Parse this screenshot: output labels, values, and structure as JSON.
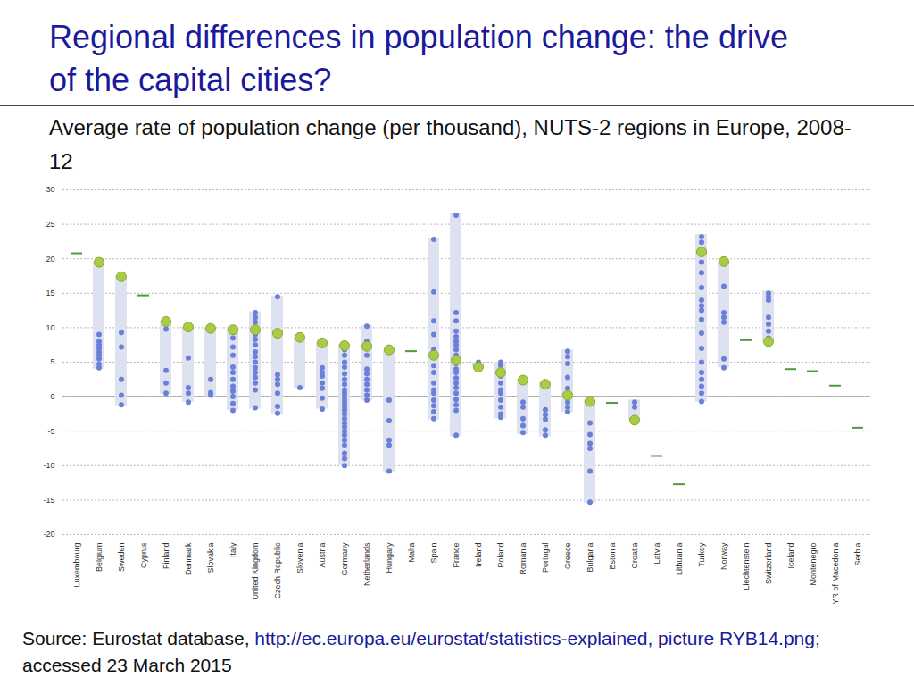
{
  "chart_data": {
    "type": "range_dot",
    "title": "Regional differences in population change: the drive of the capital cities?",
    "subtitle": "Average rate of population change (per thousand), NUTS-2 regions in Europe, 2008-12",
    "source": {
      "prefix": "Source: Eurostat database, ",
      "link": "http://ec.europa.eu/eurostat/statistics-explained, picture RYB14.png;",
      "suffix": " accessed 23 March 2015"
    },
    "categories": [
      "Luxembourg",
      "Belgium",
      "Sweden",
      "Cyprus",
      "Finland",
      "Denmark",
      "Slovakia",
      "Italy",
      "United Kingdom",
      "Czech Republic",
      "Slovenia",
      "Austria",
      "Germany",
      "Netherlands",
      "Hungary",
      "Malta",
      "Spain",
      "France",
      "Ireland",
      "Poland",
      "Romania",
      "Portugal",
      "Greece",
      "Bulgaria",
      "Estonia",
      "Croatia",
      "Latvia",
      "Lithuania",
      "Turkey",
      "Norway",
      "Liechtenstein",
      "Switzerland",
      "Iceland",
      "Montenegro",
      "YR of Macedonia",
      "Serbia"
    ],
    "series": [
      {
        "type": "range",
        "color": "#dde1f0",
        "values": [
          null,
          [
            4,
            19.5
          ],
          [
            -1.3,
            17.5
          ],
          null,
          [
            0.3,
            10.9
          ],
          [
            -0.8,
            10.1
          ],
          [
            0,
            9.9
          ],
          [
            -2,
            9.8
          ],
          [
            -1.8,
            12.3
          ],
          [
            -2.5,
            14.6
          ],
          [
            1.2,
            8.6
          ],
          [
            -1.8,
            7.8
          ],
          [
            -10,
            7.6
          ],
          [
            -0.6,
            10.3
          ],
          [
            -10.9,
            6.8
          ],
          null,
          [
            -3.4,
            22.9
          ],
          [
            -5.8,
            26.5
          ],
          [
            4.3,
            5
          ],
          [
            -3.2,
            5
          ],
          [
            -5.5,
            2.5
          ],
          [
            -5.8,
            2
          ],
          [
            -2.3,
            6.8
          ],
          [
            -15.5,
            -0.5
          ],
          null,
          [
            -3.4,
            -0.5
          ],
          null,
          null,
          [
            -0.8,
            23.5
          ],
          [
            4.2,
            19.6
          ],
          null,
          [
            8,
            15.3
          ],
          null,
          null,
          null,
          null
        ]
      },
      {
        "type": "dot",
        "marker": "point",
        "color": "#6a80d8",
        "values": [
          [],
          [
            4.2,
            4.7,
            5.5,
            6,
            6.5,
            7,
            7.5,
            8,
            9
          ],
          [
            -1.2,
            0.2,
            2.5,
            7.2,
            9.3
          ],
          [],
          [
            0.5,
            2,
            3.8,
            9.8
          ],
          [
            -0.8,
            0.5,
            1.3,
            5.6
          ],
          [
            0.2,
            0.6,
            2.5
          ],
          [
            -2,
            -1,
            0,
            0.8,
            1.5,
            2.5,
            3.5,
            4.3,
            6,
            7.2,
            8.5,
            9.3
          ],
          [
            -1.6,
            1,
            2,
            2.8,
            3.5,
            4.2,
            5,
            5.8,
            6.5,
            7.5,
            8.3,
            9,
            10,
            10.8,
            11.5,
            12.2
          ],
          [
            -2.4,
            -1.4,
            0.5,
            1.8,
            2.5,
            3.2,
            14.5
          ],
          [
            1.3
          ],
          [
            -1.8,
            -0.2,
            1.2,
            2,
            3,
            3.5,
            4.2
          ],
          [
            -10,
            -9,
            -8.2,
            -7,
            -6.3,
            -5.6,
            -5,
            -4.4,
            -3.8,
            -3.2,
            -2.5,
            -2,
            -1.5,
            -1,
            -0.5,
            0,
            0.5,
            1,
            1.8,
            2.5,
            3.3,
            4.3,
            5,
            6,
            6.8,
            7.5
          ],
          [
            -0.5,
            0.2,
            1,
            1.8,
            2.5,
            3.3,
            4,
            6,
            8,
            10.2
          ],
          [
            -10.8,
            -7,
            -6.3,
            -3.5,
            -0.5
          ],
          [],
          [
            -3.2,
            -2.2,
            -1.3,
            -0.5,
            0.5,
            1,
            2,
            3.5,
            4.5,
            6.8,
            9,
            11,
            15.2,
            22.8
          ],
          [
            -5.6,
            -2,
            -1.2,
            -0.4,
            0.5,
            1.3,
            2,
            2.7,
            3.5,
            4,
            4.8,
            6,
            6.8,
            7.5,
            8,
            8.7,
            9.5,
            11,
            12.2,
            26.3
          ],
          [
            5
          ],
          [
            -3,
            -2.5,
            -1.5,
            -0.5,
            0.5,
            1,
            2,
            3,
            4.5,
            5
          ],
          [
            -5.2,
            -4.2,
            -3.2,
            -1.5,
            -0.8
          ],
          [
            -5.6,
            -4.8,
            -3.3,
            -2.6,
            -1.9,
            1.5
          ],
          [
            -2.2,
            -1.5,
            -0.8,
            0.5,
            1.2,
            2.8,
            4.8,
            5.8,
            6.6
          ],
          [
            -15.3,
            -10.8,
            -7.5,
            -6.8,
            -5.5,
            -3.8
          ],
          [],
          [
            -1.5,
            -0.8
          ],
          [],
          [],
          [
            -0.7,
            0.5,
            1.5,
            2.5,
            3.5,
            5,
            7,
            9.2,
            11.2,
            12.5,
            13.2,
            14,
            15.8,
            18,
            19.5,
            22.4,
            23.2
          ],
          [
            4.2,
            5.5,
            10.8,
            11.5,
            12.2,
            16
          ],
          [],
          [
            8.5,
            9.5,
            10.5,
            11.5,
            14,
            14.5,
            15
          ],
          [],
          [],
          [],
          []
        ]
      },
      {
        "type": "dot",
        "marker": "circle",
        "color": "#a8cc44",
        "values": [
          null,
          19.5,
          17.4,
          null,
          10.9,
          10.1,
          9.9,
          9.7,
          9.7,
          9.2,
          8.6,
          7.8,
          7.4,
          7.3,
          6.8,
          null,
          6,
          5.3,
          4.3,
          3.5,
          2.4,
          1.8,
          0.2,
          -0.7,
          null,
          -3.4,
          null,
          null,
          21,
          19.6,
          null,
          8,
          null,
          null,
          null,
          null
        ]
      },
      {
        "type": "dot",
        "marker": "dash",
        "color": "#4e9a3a",
        "values": [
          20.8,
          null,
          null,
          14.7,
          null,
          null,
          null,
          null,
          null,
          null,
          null,
          null,
          null,
          null,
          null,
          6.6,
          null,
          null,
          null,
          null,
          null,
          null,
          null,
          null,
          -0.9,
          null,
          -8.6,
          -12.7,
          null,
          null,
          8.2,
          null,
          4,
          3.7,
          1.6,
          -4.5
        ]
      }
    ],
    "ylim": [
      -20,
      30
    ],
    "yticks": [
      -20,
      -15,
      -10,
      -5,
      0,
      5,
      10,
      15,
      20,
      25,
      30
    ],
    "grid": true
  }
}
